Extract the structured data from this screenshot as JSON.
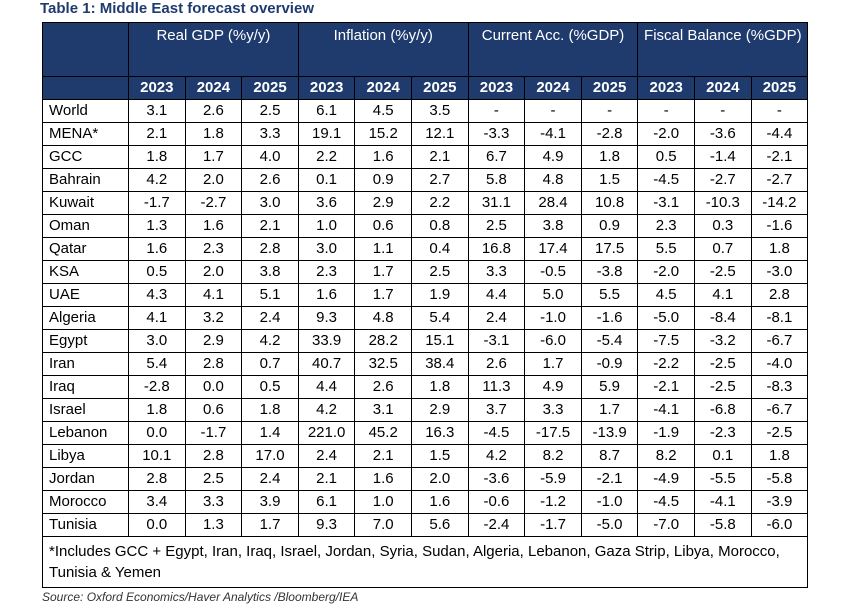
{
  "title": "Table 1: Middle East forecast overview",
  "groups": [
    "Real GDP (%y/y)",
    "Inflation (%y/y)",
    "Current Acc. (%GDP)",
    "Fiscal Balance (%GDP)"
  ],
  "years": [
    "2023",
    "2024",
    "2025",
    "2023",
    "2024",
    "2025",
    "2023",
    "2024",
    "2025",
    "2023",
    "2024",
    "2025"
  ],
  "rows": [
    {
      "name": "World",
      "values": [
        "3.1",
        "2.6",
        "2.5",
        "6.1",
        "4.5",
        "3.5",
        "-",
        "-",
        "-",
        "-",
        "-",
        "-"
      ]
    },
    {
      "name": "MENA*",
      "values": [
        "2.1",
        "1.8",
        "3.3",
        "19.1",
        "15.2",
        "12.1",
        "-3.3",
        "-4.1",
        "-2.8",
        "-2.0",
        "-3.6",
        "-4.4"
      ]
    },
    {
      "name": "GCC",
      "values": [
        "1.8",
        "1.7",
        "4.0",
        "2.2",
        "1.6",
        "2.1",
        "6.7",
        "4.9",
        "1.8",
        "0.5",
        "-1.4",
        "-2.1"
      ]
    },
    {
      "name": "Bahrain",
      "values": [
        "4.2",
        "2.0",
        "2.6",
        "0.1",
        "0.9",
        "2.7",
        "5.8",
        "4.8",
        "1.5",
        "-4.5",
        "-2.7",
        "-2.7"
      ]
    },
    {
      "name": "Kuwait",
      "values": [
        "-1.7",
        "-2.7",
        "3.0",
        "3.6",
        "2.9",
        "2.2",
        "31.1",
        "28.4",
        "10.8",
        "-3.1",
        "-10.3",
        "-14.2"
      ]
    },
    {
      "name": "Oman",
      "values": [
        "1.3",
        "1.6",
        "2.1",
        "1.0",
        "0.6",
        "0.8",
        "2.5",
        "3.8",
        "0.9",
        "2.3",
        "0.3",
        "-1.6"
      ]
    },
    {
      "name": "Qatar",
      "values": [
        "1.6",
        "2.3",
        "2.8",
        "3.0",
        "1.1",
        "0.4",
        "16.8",
        "17.4",
        "17.5",
        "5.5",
        "0.7",
        "1.8"
      ]
    },
    {
      "name": "KSA",
      "values": [
        "0.5",
        "2.0",
        "3.8",
        "2.3",
        "1.7",
        "2.5",
        "3.3",
        "-0.5",
        "-3.8",
        "-2.0",
        "-2.5",
        "-3.0"
      ]
    },
    {
      "name": "UAE",
      "values": [
        "4.3",
        "4.1",
        "5.1",
        "1.6",
        "1.7",
        "1.9",
        "4.4",
        "5.0",
        "5.5",
        "4.5",
        "4.1",
        "2.8"
      ]
    },
    {
      "name": "Algeria",
      "values": [
        "4.1",
        "3.2",
        "2.4",
        "9.3",
        "4.8",
        "5.4",
        "2.4",
        "-1.0",
        "-1.6",
        "-5.0",
        "-8.4",
        "-8.1"
      ]
    },
    {
      "name": "Egypt",
      "values": [
        "3.0",
        "2.9",
        "4.2",
        "33.9",
        "28.2",
        "15.1",
        "-3.1",
        "-6.0",
        "-5.4",
        "-7.5",
        "-3.2",
        "-6.7"
      ]
    },
    {
      "name": "Iran",
      "values": [
        "5.4",
        "2.8",
        "0.7",
        "40.7",
        "32.5",
        "38.4",
        "2.6",
        "1.7",
        "-0.9",
        "-2.2",
        "-2.5",
        "-4.0"
      ]
    },
    {
      "name": "Iraq",
      "values": [
        "-2.8",
        "0.0",
        "0.5",
        "4.4",
        "2.6",
        "1.8",
        "11.3",
        "4.9",
        "5.9",
        "-2.1",
        "-2.5",
        "-8.3"
      ]
    },
    {
      "name": "Israel",
      "values": [
        "1.8",
        "0.6",
        "1.8",
        "4.2",
        "3.1",
        "2.9",
        "3.7",
        "3.3",
        "1.7",
        "-4.1",
        "-6.8",
        "-6.7"
      ]
    },
    {
      "name": "Lebanon",
      "values": [
        "0.0",
        "-1.7",
        "1.4",
        "221.0",
        "45.2",
        "16.3",
        "-4.5",
        "-17.5",
        "-13.9",
        "-1.9",
        "-2.3",
        "-2.5"
      ]
    },
    {
      "name": "Libya",
      "values": [
        "10.1",
        "2.8",
        "17.0",
        "2.4",
        "2.1",
        "1.5",
        "4.2",
        "8.2",
        "8.7",
        "8.2",
        "0.1",
        "1.8"
      ]
    },
    {
      "name": "Jordan",
      "values": [
        "2.8",
        "2.5",
        "2.4",
        "2.1",
        "1.6",
        "2.0",
        "-3.6",
        "-5.9",
        "-2.1",
        "-4.9",
        "-5.5",
        "-5.8"
      ]
    },
    {
      "name": "Morocco",
      "values": [
        "3.4",
        "3.3",
        "3.9",
        "6.1",
        "1.0",
        "1.6",
        "-0.6",
        "-1.2",
        "-1.0",
        "-4.5",
        "-4.1",
        "-3.9"
      ]
    },
    {
      "name": "Tunisia",
      "values": [
        "0.0",
        "1.3",
        "1.7",
        "9.3",
        "7.0",
        "5.6",
        "-2.4",
        "-1.7",
        "-5.0",
        "-7.0",
        "-5.8",
        "-6.0"
      ]
    }
  ],
  "footnote": "*Includes GCC + Egypt, Iran, Iraq, Israel, Jordan, Syria, Sudan, Algeria, Lebanon, Gaza Strip, Libya, Morocco, Tunisia & Yemen",
  "source": "Source: Oxford Economics/Haver Analytics /Bloomberg/IEA",
  "colors": {
    "header_bg": "#1f3b6e",
    "header_text": "#ffffff",
    "title": "#1f3b6e"
  }
}
